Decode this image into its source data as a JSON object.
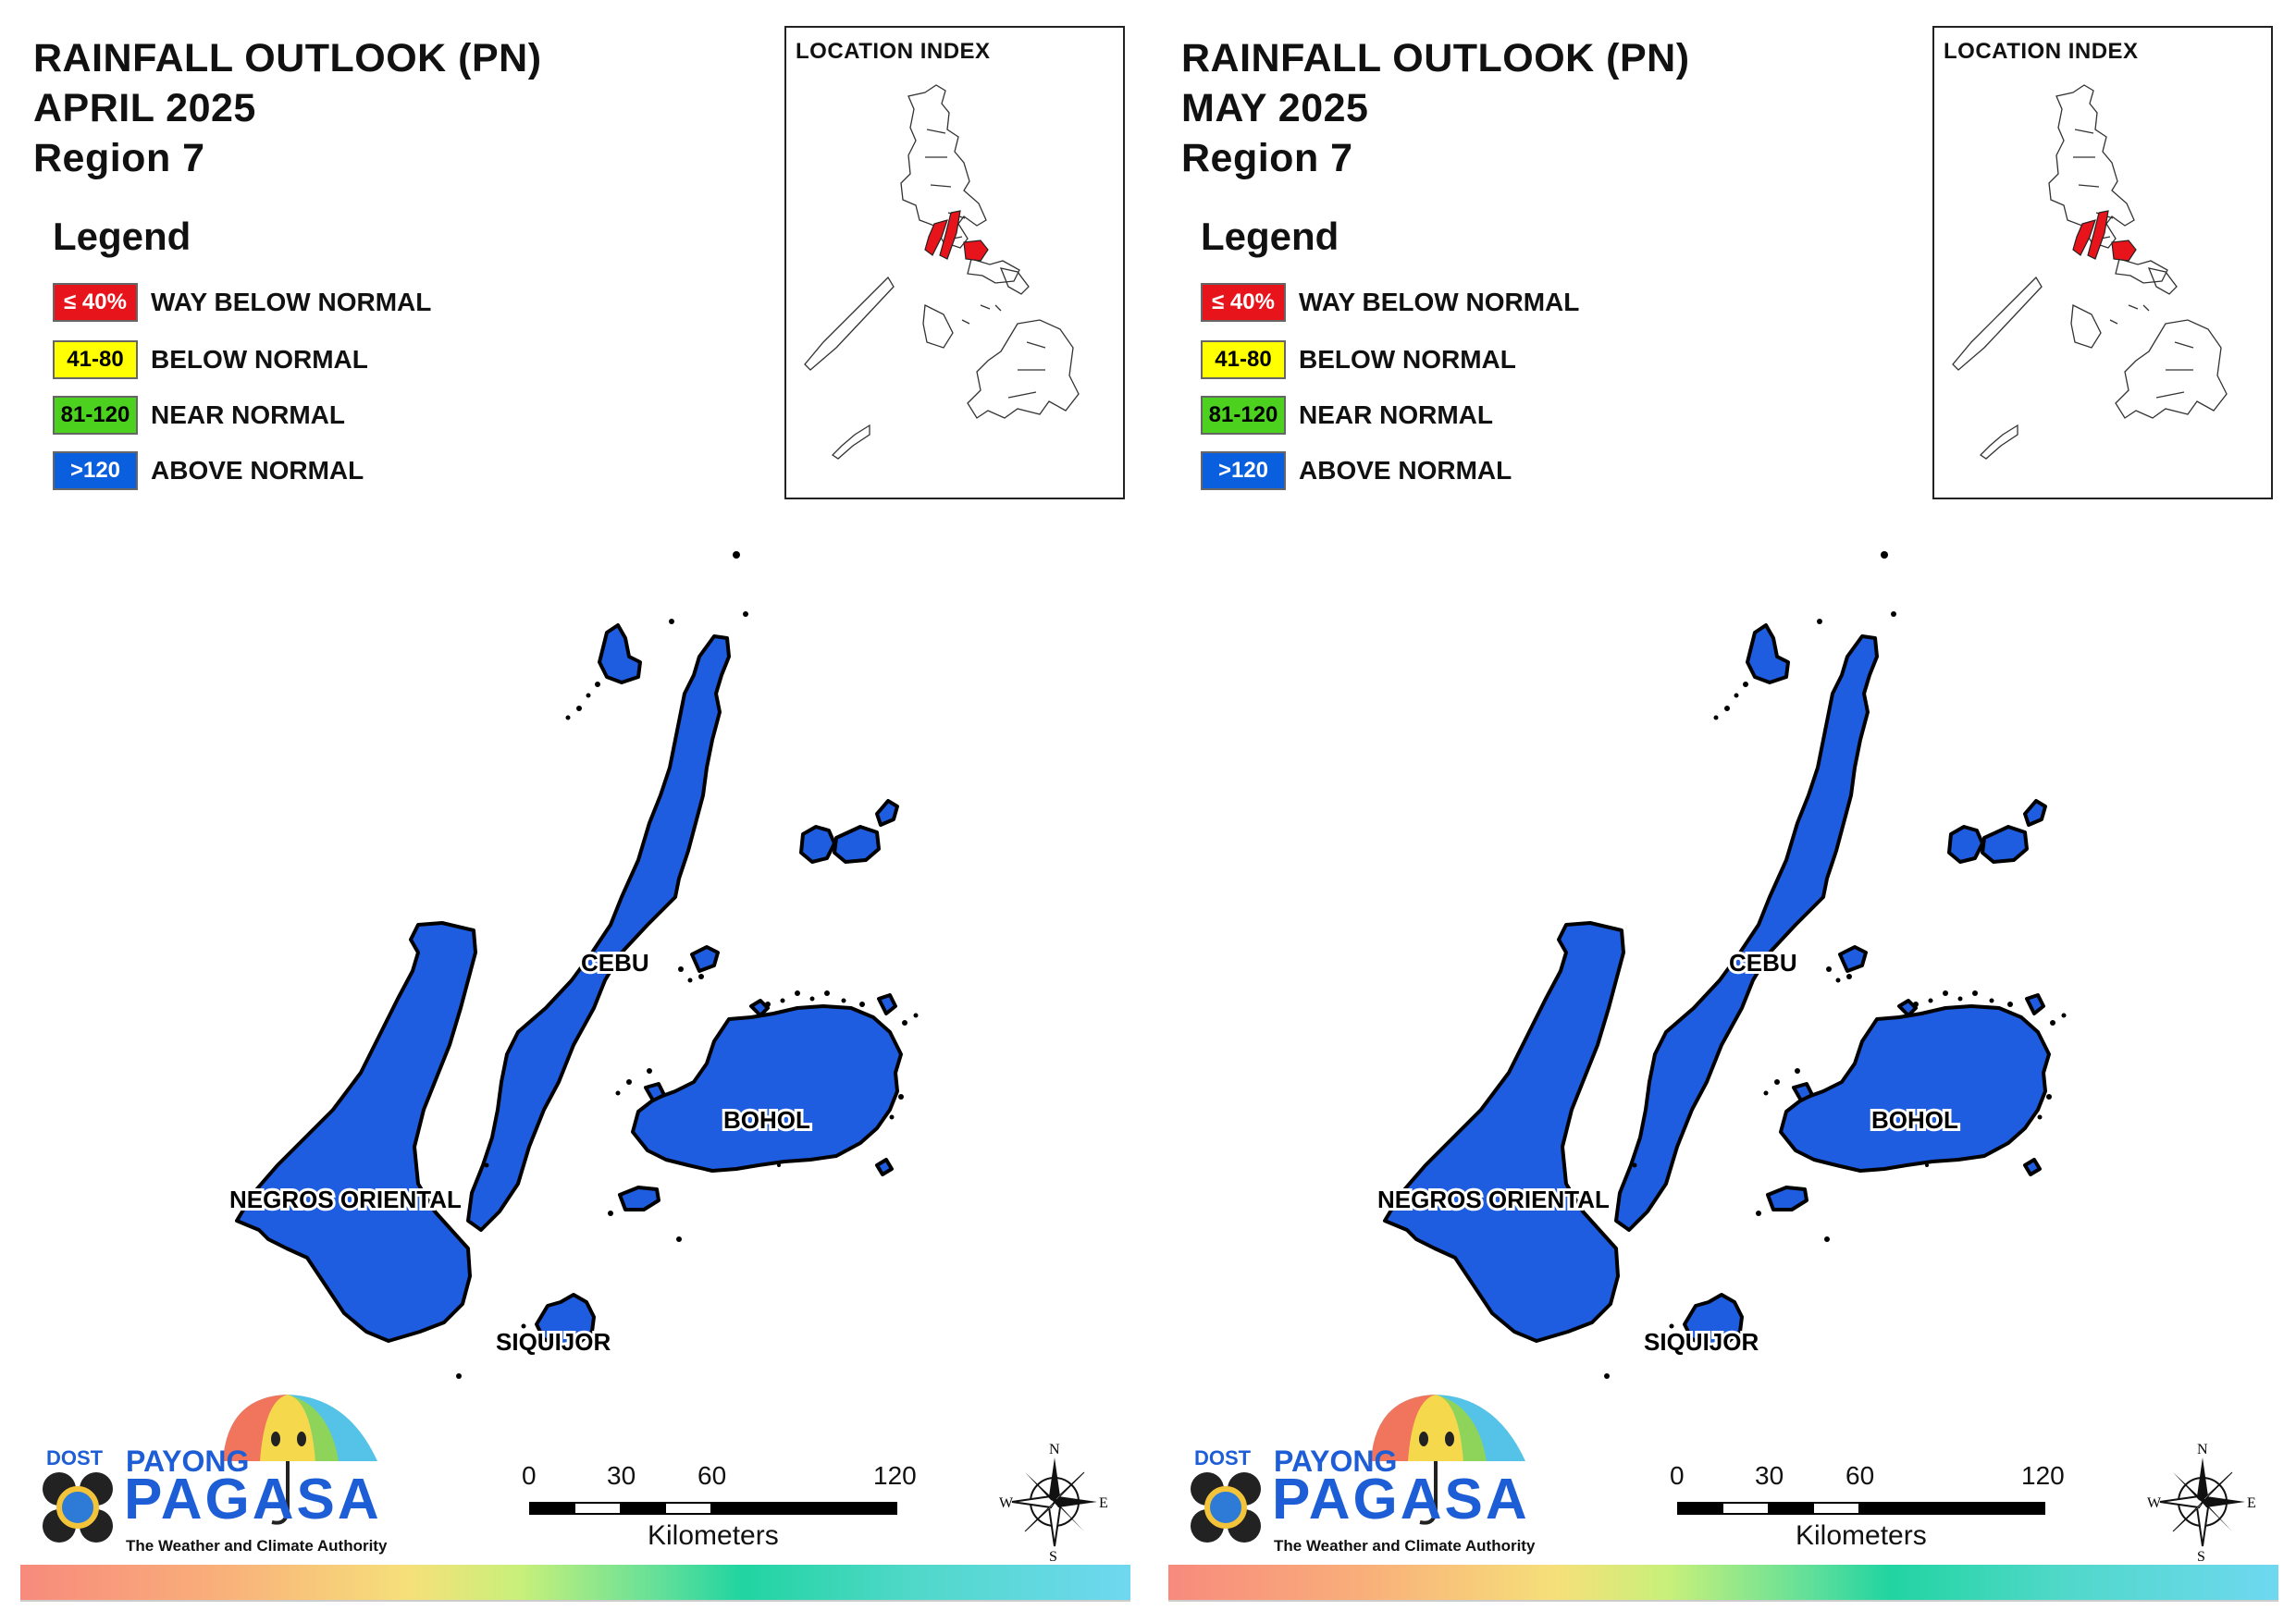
{
  "panels": [
    {
      "title_line1": "RAINFALL OUTLOOK (PN)",
      "title_line2": "APRIL 2025",
      "title_line3": "Region 7"
    },
    {
      "title_line1": "RAINFALL OUTLOOK (PN)",
      "title_line2": "MAY 2025",
      "title_line3": "Region 7"
    }
  ],
  "legend": {
    "title": "Legend",
    "items": [
      {
        "range": "≤ 40%",
        "label": "WAY BELOW NORMAL",
        "color": "#e8141b",
        "text_color": "#ffffff"
      },
      {
        "range": "41-80",
        "label": "BELOW NORMAL",
        "color": "#ffff00",
        "text_color": "#000000"
      },
      {
        "range": "81-120",
        "label": "NEAR NORMAL",
        "color": "#4cd21e",
        "text_color": "#000000"
      },
      {
        "range": ">120",
        "label": "ABOVE NORMAL",
        "color": "#0a5fdf",
        "text_color": "#ffffff"
      }
    ]
  },
  "location_index": {
    "title": "LOCATION INDEX",
    "highlight_color": "#e8141b"
  },
  "map": {
    "fill_color": "#1f5de0",
    "provinces": {
      "cebu": "CEBU",
      "bohol": "BOHOL",
      "negros": "NEGROS ORIENTAL",
      "siquijor": "SIQUIJOR"
    }
  },
  "scale": {
    "ticks": [
      "0",
      "30",
      "60",
      "120"
    ],
    "unit": "Kilometers"
  },
  "compass": {
    "n": "N",
    "s": "S",
    "e": "E",
    "w": "W"
  },
  "logo": {
    "dost": "DOST",
    "payong": "PAYONG",
    "pagasa": "PAGASA",
    "tagline": "The Weather and Climate Authority"
  }
}
